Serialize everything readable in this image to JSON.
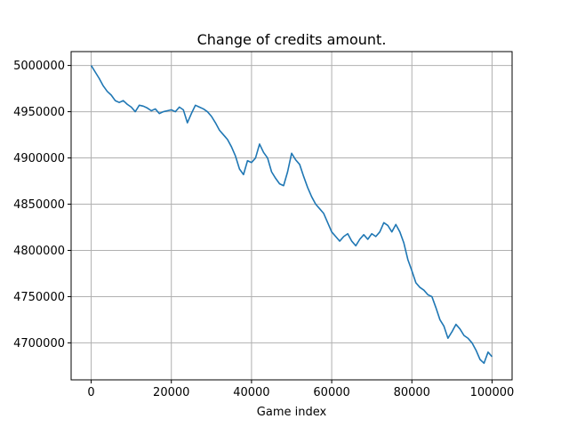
{
  "chart_data": {
    "type": "line",
    "title": "Change of credits amount.",
    "xlabel": "Game index",
    "ylabel": "",
    "xlim": [
      -5000,
      105000
    ],
    "ylim": [
      4660000,
      5015000
    ],
    "xticks": [
      0,
      20000,
      40000,
      60000,
      80000,
      100000
    ],
    "yticks": [
      4700000,
      4750000,
      4800000,
      4850000,
      4900000,
      4950000,
      5000000
    ],
    "grid": true,
    "series": [
      {
        "name": "",
        "color": "#1f77b4",
        "points": [
          [
            0,
            5000000
          ],
          [
            1000,
            4993000
          ],
          [
            2000,
            4986000
          ],
          [
            3000,
            4978000
          ],
          [
            4000,
            4972000
          ],
          [
            5000,
            4968000
          ],
          [
            6000,
            4962000
          ],
          [
            7000,
            4960000
          ],
          [
            8000,
            4962000
          ],
          [
            9000,
            4958000
          ],
          [
            10000,
            4955000
          ],
          [
            11000,
            4950000
          ],
          [
            12000,
            4957000
          ],
          [
            13000,
            4956000
          ],
          [
            14000,
            4954000
          ],
          [
            15000,
            4951000
          ],
          [
            16000,
            4953000
          ],
          [
            17000,
            4948000
          ],
          [
            18000,
            4950000
          ],
          [
            19000,
            4951000
          ],
          [
            20000,
            4952000
          ],
          [
            21000,
            4950000
          ],
          [
            22000,
            4955000
          ],
          [
            23000,
            4952000
          ],
          [
            24000,
            4938000
          ],
          [
            25000,
            4948000
          ],
          [
            26000,
            4957000
          ],
          [
            27000,
            4955000
          ],
          [
            28000,
            4953000
          ],
          [
            29000,
            4950000
          ],
          [
            30000,
            4945000
          ],
          [
            31000,
            4938000
          ],
          [
            32000,
            4930000
          ],
          [
            33000,
            4925000
          ],
          [
            34000,
            4920000
          ],
          [
            35000,
            4912000
          ],
          [
            36000,
            4902000
          ],
          [
            37000,
            4888000
          ],
          [
            38000,
            4882000
          ],
          [
            39000,
            4897000
          ],
          [
            40000,
            4895000
          ],
          [
            41000,
            4900000
          ],
          [
            42000,
            4915000
          ],
          [
            43000,
            4906000
          ],
          [
            44000,
            4900000
          ],
          [
            45000,
            4885000
          ],
          [
            46000,
            4878000
          ],
          [
            47000,
            4872000
          ],
          [
            48000,
            4870000
          ],
          [
            49000,
            4885000
          ],
          [
            50000,
            4905000
          ],
          [
            51000,
            4898000
          ],
          [
            52000,
            4893000
          ],
          [
            53000,
            4880000
          ],
          [
            54000,
            4868000
          ],
          [
            55000,
            4858000
          ],
          [
            56000,
            4850000
          ],
          [
            57000,
            4845000
          ],
          [
            58000,
            4840000
          ],
          [
            59000,
            4830000
          ],
          [
            60000,
            4820000
          ],
          [
            61000,
            4815000
          ],
          [
            62000,
            4810000
          ],
          [
            63000,
            4815000
          ],
          [
            64000,
            4818000
          ],
          [
            65000,
            4810000
          ],
          [
            66000,
            4805000
          ],
          [
            67000,
            4812000
          ],
          [
            68000,
            4817000
          ],
          [
            69000,
            4812000
          ],
          [
            70000,
            4818000
          ],
          [
            71000,
            4815000
          ],
          [
            72000,
            4820000
          ],
          [
            73000,
            4830000
          ],
          [
            74000,
            4827000
          ],
          [
            75000,
            4820000
          ],
          [
            76000,
            4828000
          ],
          [
            77000,
            4820000
          ],
          [
            78000,
            4808000
          ],
          [
            79000,
            4790000
          ],
          [
            80000,
            4778000
          ],
          [
            81000,
            4765000
          ],
          [
            82000,
            4760000
          ],
          [
            83000,
            4757000
          ],
          [
            84000,
            4752000
          ],
          [
            85000,
            4750000
          ],
          [
            86000,
            4738000
          ],
          [
            87000,
            4725000
          ],
          [
            88000,
            4718000
          ],
          [
            89000,
            4705000
          ],
          [
            90000,
            4712000
          ],
          [
            91000,
            4720000
          ],
          [
            92000,
            4715000
          ],
          [
            93000,
            4708000
          ],
          [
            94000,
            4705000
          ],
          [
            95000,
            4700000
          ],
          [
            96000,
            4692000
          ],
          [
            97000,
            4682000
          ],
          [
            98000,
            4678000
          ],
          [
            99000,
            4690000
          ],
          [
            100000,
            4685000
          ]
        ]
      }
    ]
  }
}
